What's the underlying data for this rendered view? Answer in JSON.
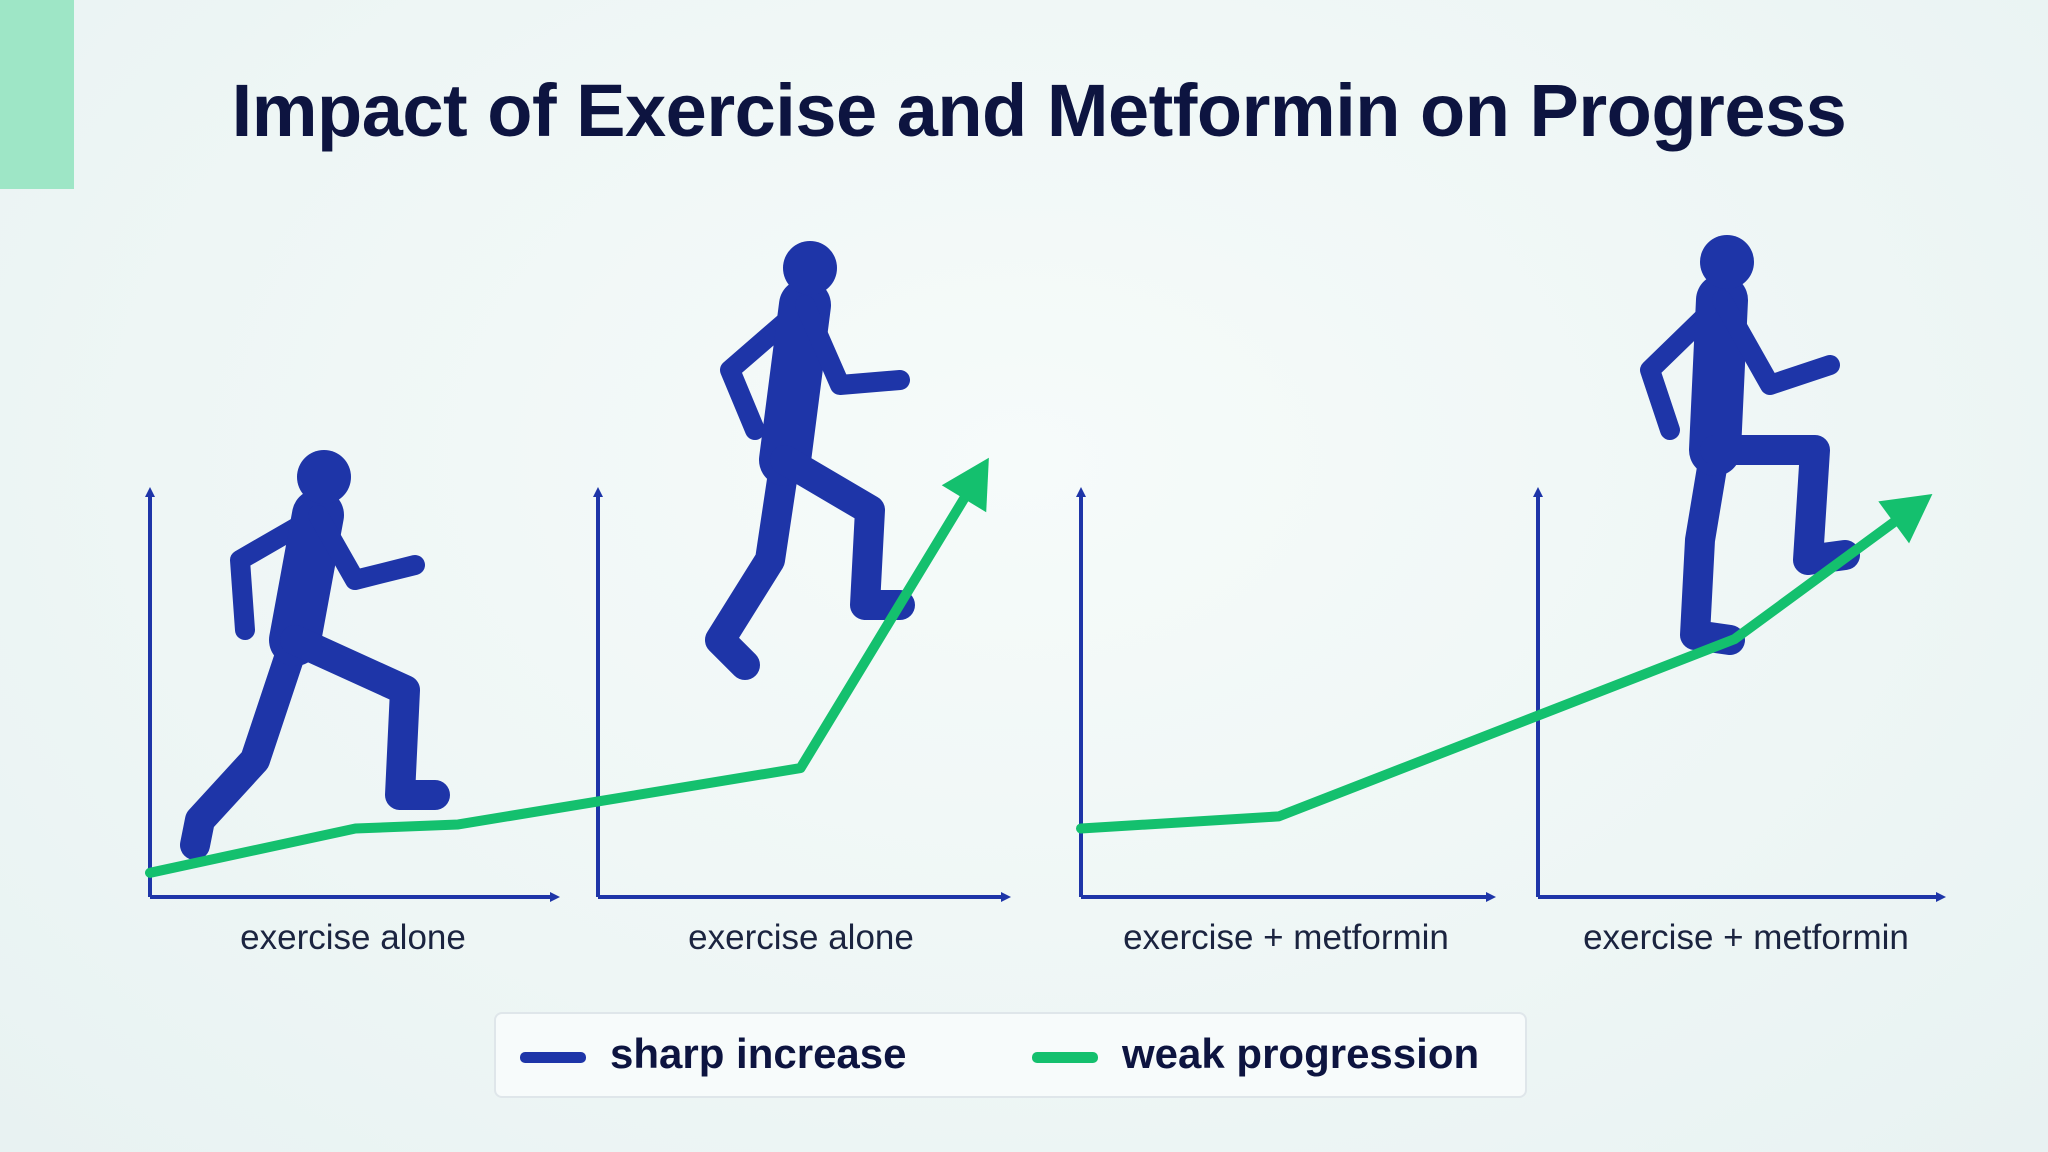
{
  "title": "Impact of Exercise and Metformin on Progress",
  "colors": {
    "accent": "#9ee6c6",
    "axis": "#1e35a8",
    "runner": "#1e35a8",
    "line": "#14c06e",
    "title": "#0d1440"
  },
  "chart_data": {
    "type": "line",
    "title": "Impact of Exercise and Metformin on Progress",
    "panels": [
      {
        "label": "exercise alone"
      },
      {
        "label": "exercise alone"
      },
      {
        "label": "exercise + metformin"
      },
      {
        "label": "exercise + metformin"
      }
    ],
    "ylim": [
      0,
      100
    ],
    "xlim": [
      0,
      10
    ],
    "series": [
      {
        "name": "weak progression",
        "group": "exercise alone",
        "x": [
          0,
          2.4,
          3.6,
          7.6,
          9.8
        ],
        "y": [
          6,
          17,
          18,
          32,
          109
        ]
      },
      {
        "name": "weak progression",
        "group": "exercise + metformin",
        "x": [
          0,
          2.3,
          7.6,
          9.9
        ],
        "y": [
          17,
          20,
          64,
          100
        ]
      }
    ],
    "legend": {
      "placement": "bottom-center",
      "items": [
        {
          "label": "sharp increase",
          "color": "#1e35a8"
        },
        {
          "label": "weak progression",
          "color": "#14c06e"
        }
      ]
    }
  }
}
